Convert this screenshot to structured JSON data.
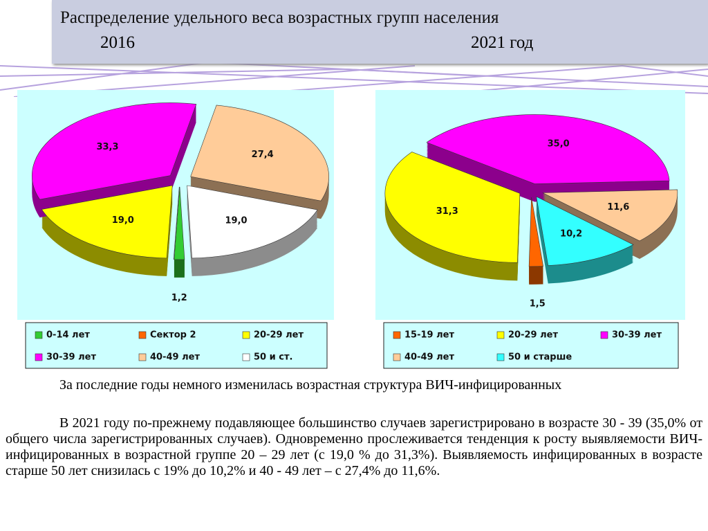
{
  "header": {
    "title": "Распределение удельного веса возрастных групп населения",
    "year_left": "2016",
    "year_right": "2021 год"
  },
  "chart_data": [
    {
      "type": "pie",
      "categories": [
        "0-14 лет",
        "Сектор 2",
        "20-29 лет",
        "30-39 лет",
        "40-49 лет",
        "50 и ст."
      ],
      "values": [
        1.2,
        0,
        19.0,
        33.3,
        27.4,
        19.0
      ],
      "value_labels": [
        "1,2",
        null,
        "19,0",
        "33,3",
        "27,4",
        "19,0"
      ],
      "colors": [
        "#33cc33",
        "#ff6600",
        "#ffff00",
        "#ff00ff",
        "#ffcc99",
        "#ffffff"
      ]
    },
    {
      "type": "pie",
      "categories": [
        "15-19 лет",
        "20-29 лет",
        "30-39 лет",
        "40-49 лет",
        "50 и старше"
      ],
      "values": [
        1.5,
        31.3,
        35.0,
        11.6,
        10.2
      ],
      "value_labels": [
        "1,5",
        "31,3",
        "35,0",
        "11,6",
        "10,2"
      ],
      "colors": [
        "#ff6600",
        "#ffff00",
        "#ff00ff",
        "#ffcc99",
        "#33ffff"
      ]
    }
  ],
  "text": {
    "paragraphs": [
      "За последние годы немного изменилась возрастная структура ВИЧ-инфицированных",
      "В 2021 году по-прежнему подавляющее большинство случаев зарегистрировано в возрасте 30 - 39 (35,0% от общего числа зарегистрированных случаев). Одновременно прослеживается тенденция к росту выявляемости ВИЧ-инфицированных в возрастной группе 20 – 29 лет (с 19,0 % до 31,3%). Выявляемость инфицированных в возрасте старше 50 лет снизилась с 19% до 10,2% и 40 - 49 лет – с 27,4% до 11,6%."
    ]
  }
}
